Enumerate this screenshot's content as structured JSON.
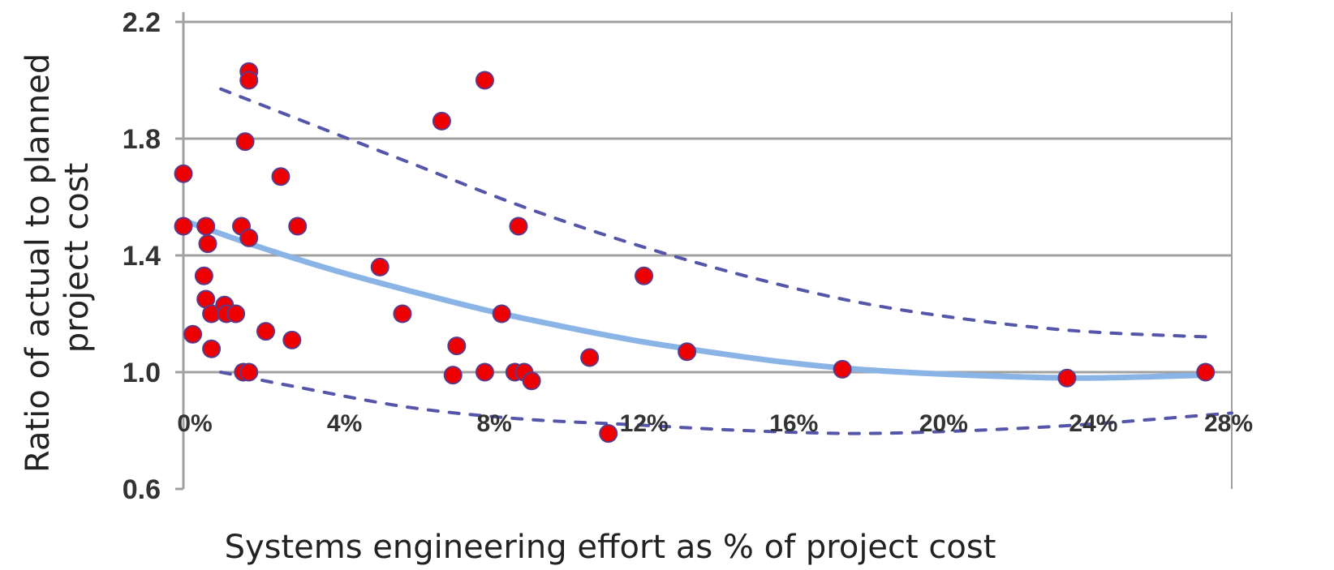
{
  "chart_data": {
    "type": "scatter",
    "title": "",
    "xlabel": "Systems engineering effort as % of project cost",
    "ylabel_lines": [
      "Ratio of actual to planned",
      "project cost"
    ],
    "xlim": [
      0,
      28
    ],
    "ylim": [
      0.6,
      2.2
    ],
    "x_ticks": [
      {
        "value": 0,
        "label": "0%"
      },
      {
        "value": 4,
        "label": "4%"
      },
      {
        "value": 8,
        "label": "8%"
      },
      {
        "value": 12,
        "label": "12%"
      },
      {
        "value": 16,
        "label": "16%"
      },
      {
        "value": 20,
        "label": "20%"
      },
      {
        "value": 24,
        "label": "24%"
      },
      {
        "value": 28,
        "label": "28%"
      }
    ],
    "y_ticks": [
      {
        "value": 0.6,
        "label": "0.6"
      },
      {
        "value": 1.0,
        "label": "1.0"
      },
      {
        "value": 1.4,
        "label": "1.4"
      },
      {
        "value": 1.8,
        "label": "1.8"
      },
      {
        "value": 2.2,
        "label": "2.2"
      }
    ],
    "grid": {
      "horizontal": true,
      "vertical": false
    },
    "colors": {
      "points": "#ee0000",
      "point_outline": "#5a3a8a",
      "trend": "#8ab4e6",
      "bounds": "#5555aa",
      "grid": "#a0a0a0"
    },
    "points": [
      {
        "x": 0.0,
        "y": 1.68
      },
      {
        "x": 0.0,
        "y": 1.5
      },
      {
        "x": 0.25,
        "y": 1.13
      },
      {
        "x": 0.6,
        "y": 1.5
      },
      {
        "x": 0.65,
        "y": 1.44
      },
      {
        "x": 0.55,
        "y": 1.33
      },
      {
        "x": 0.6,
        "y": 1.25
      },
      {
        "x": 0.75,
        "y": 1.2
      },
      {
        "x": 0.75,
        "y": 1.08
      },
      {
        "x": 1.1,
        "y": 1.23
      },
      {
        "x": 1.15,
        "y": 1.2
      },
      {
        "x": 1.4,
        "y": 1.2
      },
      {
        "x": 1.55,
        "y": 1.5
      },
      {
        "x": 1.65,
        "y": 1.79
      },
      {
        "x": 1.75,
        "y": 1.46
      },
      {
        "x": 1.75,
        "y": 2.03
      },
      {
        "x": 1.75,
        "y": 2.0
      },
      {
        "x": 1.6,
        "y": 1.0
      },
      {
        "x": 1.75,
        "y": 1.0
      },
      {
        "x": 2.2,
        "y": 1.14
      },
      {
        "x": 2.6,
        "y": 1.67
      },
      {
        "x": 2.9,
        "y": 1.11
      },
      {
        "x": 3.05,
        "y": 1.5
      },
      {
        "x": 5.25,
        "y": 1.36
      },
      {
        "x": 5.85,
        "y": 1.2
      },
      {
        "x": 6.9,
        "y": 1.86
      },
      {
        "x": 7.2,
        "y": 0.99
      },
      {
        "x": 7.3,
        "y": 1.09
      },
      {
        "x": 8.05,
        "y": 2.0
      },
      {
        "x": 8.05,
        "y": 1.0
      },
      {
        "x": 8.5,
        "y": 1.2
      },
      {
        "x": 8.85,
        "y": 1.0
      },
      {
        "x": 8.95,
        "y": 1.5
      },
      {
        "x": 9.1,
        "y": 1.0
      },
      {
        "x": 9.3,
        "y": 0.97
      },
      {
        "x": 10.85,
        "y": 1.05
      },
      {
        "x": 11.35,
        "y": 0.79
      },
      {
        "x": 12.3,
        "y": 1.33
      },
      {
        "x": 13.45,
        "y": 1.07
      },
      {
        "x": 17.6,
        "y": 1.01
      },
      {
        "x": 23.6,
        "y": 0.98
      },
      {
        "x": 27.3,
        "y": 1.0
      }
    ],
    "trend_line": {
      "style": "solid",
      "points": [
        {
          "x": 0,
          "y": 1.52
        },
        {
          "x": 2,
          "y": 1.43
        },
        {
          "x": 4,
          "y": 1.35
        },
        {
          "x": 6,
          "y": 1.28
        },
        {
          "x": 8,
          "y": 1.215
        },
        {
          "x": 10,
          "y": 1.16
        },
        {
          "x": 12,
          "y": 1.11
        },
        {
          "x": 14,
          "y": 1.07
        },
        {
          "x": 16,
          "y": 1.035
        },
        {
          "x": 18,
          "y": 1.01
        },
        {
          "x": 20,
          "y": 0.995
        },
        {
          "x": 22,
          "y": 0.985
        },
        {
          "x": 24,
          "y": 0.98
        },
        {
          "x": 26,
          "y": 0.985
        },
        {
          "x": 27.3,
          "y": 0.99
        }
      ]
    },
    "upper_bound": {
      "style": "dashed",
      "points": [
        {
          "x": 1,
          "y": 1.97
        },
        {
          "x": 3,
          "y": 1.87
        },
        {
          "x": 6,
          "y": 1.72
        },
        {
          "x": 9,
          "y": 1.57
        },
        {
          "x": 12,
          "y": 1.44
        },
        {
          "x": 15,
          "y": 1.33
        },
        {
          "x": 18,
          "y": 1.24
        },
        {
          "x": 21,
          "y": 1.18
        },
        {
          "x": 24,
          "y": 1.14
        },
        {
          "x": 27.5,
          "y": 1.12
        }
      ]
    },
    "lower_bound": {
      "style": "dashed",
      "points": [
        {
          "x": 1,
          "y": 1.0
        },
        {
          "x": 3,
          "y": 0.95
        },
        {
          "x": 6,
          "y": 0.88
        },
        {
          "x": 9,
          "y": 0.84
        },
        {
          "x": 12,
          "y": 0.82
        },
        {
          "x": 15,
          "y": 0.8
        },
        {
          "x": 18,
          "y": 0.79
        },
        {
          "x": 21,
          "y": 0.8
        },
        {
          "x": 24,
          "y": 0.82
        },
        {
          "x": 28,
          "y": 0.86
        }
      ]
    }
  }
}
